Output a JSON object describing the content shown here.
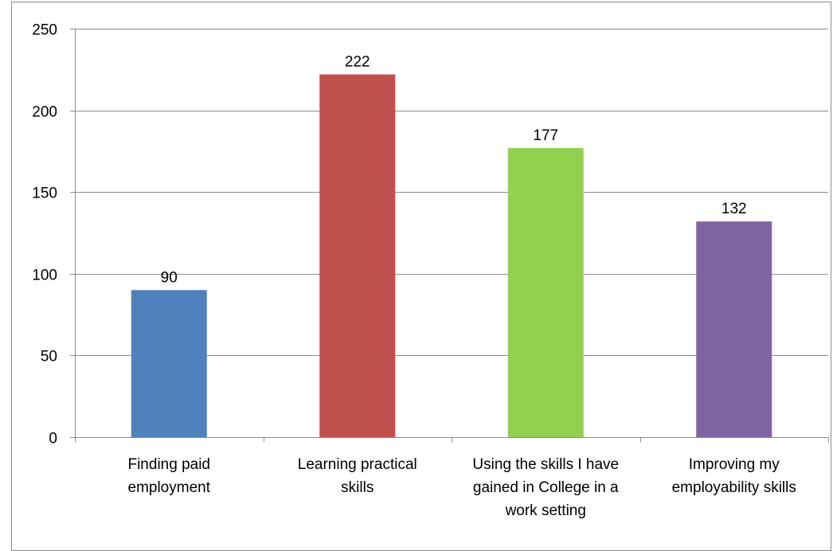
{
  "chart_data": {
    "type": "bar",
    "title": "",
    "xlabel": "",
    "ylabel": "",
    "categories": [
      [
        "Finding paid",
        "employment"
      ],
      [
        "Learning practical",
        "skills"
      ],
      [
        "Using the skills I have",
        "gained in College in a",
        "work setting"
      ],
      [
        "Improving my",
        "employability skills"
      ]
    ],
    "values": [
      90,
      222,
      177,
      132
    ],
    "colors": [
      "#4F81BD",
      "#C0504D",
      "#92D050",
      "#8064A2"
    ],
    "ylim": [
      0,
      250
    ],
    "yticks": [
      0,
      50,
      100,
      150,
      200,
      250
    ],
    "grid": true,
    "legend": "none",
    "gridline_color": "#8c8c8c",
    "axis_color": "#8c8c8c"
  }
}
